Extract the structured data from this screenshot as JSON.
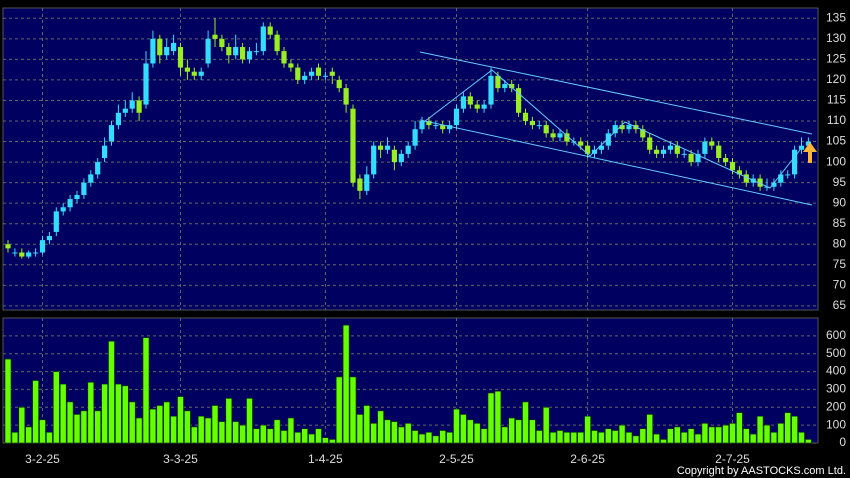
{
  "chart_data": {
    "type": "candlestick",
    "categories": [
      null,
      null,
      null,
      null,
      null,
      "3-2-25",
      null,
      null,
      null,
      null,
      null,
      null,
      null,
      null,
      null,
      null,
      null,
      null,
      null,
      null,
      null,
      null,
      null,
      null,
      null,
      "3-3-25",
      null,
      null,
      null,
      null,
      null,
      null,
      null,
      null,
      null,
      null,
      null,
      null,
      null,
      null,
      null,
      null,
      null,
      null,
      null,
      null,
      "1-4-25",
      null,
      null,
      null,
      null,
      null,
      null,
      null,
      null,
      null,
      null,
      null,
      null,
      null,
      null,
      null,
      null,
      null,
      null,
      "2-5-25",
      null,
      null,
      null,
      null,
      null,
      null,
      null,
      null,
      null,
      null,
      null,
      null,
      null,
      null,
      null,
      null,
      null,
      null,
      "2-6-25",
      null,
      null,
      null,
      null,
      null,
      null,
      null,
      null,
      null,
      null,
      null,
      null,
      null,
      null,
      null,
      null,
      null,
      null,
      null,
      null,
      "2-7-25",
      null,
      null,
      null,
      null,
      null,
      null,
      null,
      null,
      null,
      null,
      null
    ],
    "ohlc": [
      [
        80,
        81,
        78,
        79
      ],
      [
        78,
        79,
        77,
        78
      ],
      [
        78,
        79,
        76.5,
        77
      ],
      [
        77,
        78.5,
        76.5,
        78
      ],
      [
        78,
        79,
        77,
        78
      ],
      [
        78,
        82,
        77.5,
        81
      ],
      [
        81,
        83,
        80,
        82
      ],
      [
        83,
        89,
        82,
        88
      ],
      [
        88,
        90,
        87,
        89
      ],
      [
        89,
        92,
        88,
        91
      ],
      [
        91,
        93,
        90,
        92
      ],
      [
        92,
        96,
        91,
        95
      ],
      [
        95,
        98,
        94,
        97
      ],
      [
        97,
        101,
        96,
        100
      ],
      [
        101,
        106,
        100,
        104
      ],
      [
        105,
        110,
        104,
        109
      ],
      [
        109,
        114,
        108,
        112
      ],
      [
        112,
        115,
        111,
        113
      ],
      [
        113,
        117,
        112,
        115
      ],
      [
        115,
        116,
        110,
        112
      ],
      [
        114,
        127,
        113,
        124
      ],
      [
        124,
        132,
        123,
        130
      ],
      [
        130,
        131,
        124,
        126
      ],
      [
        126,
        130,
        125,
        128
      ],
      [
        127,
        131,
        126,
        129
      ],
      [
        128,
        129,
        121,
        123
      ],
      [
        123,
        125,
        120,
        122
      ],
      [
        122,
        123,
        120,
        121
      ],
      [
        121,
        123,
        120,
        122
      ],
      [
        124,
        132,
        123,
        130
      ],
      [
        131,
        135,
        128,
        130
      ],
      [
        130,
        131,
        127,
        128
      ],
      [
        128,
        129,
        124,
        126
      ],
      [
        126,
        131,
        125,
        128
      ],
      [
        128,
        129,
        124,
        125
      ],
      [
        125,
        128,
        124,
        127
      ],
      [
        127,
        129,
        126,
        127
      ],
      [
        127,
        134,
        126,
        133
      ],
      [
        133,
        134,
        130,
        131
      ],
      [
        131,
        132,
        126,
        127
      ],
      [
        127,
        128,
        123,
        124
      ],
      [
        124,
        125,
        122,
        123
      ],
      [
        123,
        124,
        119,
        120
      ],
      [
        120,
        122,
        119,
        121
      ],
      [
        121,
        123,
        120,
        122
      ],
      [
        123,
        124,
        120,
        121
      ],
      [
        121,
        122,
        120,
        121
      ],
      [
        122,
        123,
        119,
        121
      ],
      [
        120,
        121,
        117,
        118
      ],
      [
        118,
        119,
        112,
        114
      ],
      [
        113,
        114,
        94,
        95
      ],
      [
        96,
        97,
        91,
        93
      ],
      [
        93,
        99,
        92,
        97
      ],
      [
        97,
        105,
        96,
        104
      ],
      [
        104,
        105,
        101,
        103
      ],
      [
        103,
        106,
        102,
        104
      ],
      [
        103,
        104,
        98,
        100
      ],
      [
        100,
        103,
        99,
        102
      ],
      [
        102,
        105,
        101,
        104
      ],
      [
        104,
        110,
        103,
        108
      ],
      [
        108,
        111,
        107,
        110
      ],
      [
        110,
        111,
        108,
        109
      ],
      [
        109,
        110,
        108,
        109
      ],
      [
        109,
        110,
        107,
        108
      ],
      [
        108,
        110,
        107,
        109
      ],
      [
        109,
        114,
        108,
        113
      ],
      [
        113,
        117,
        112,
        116
      ],
      [
        116,
        117,
        113,
        114
      ],
      [
        114,
        115,
        112,
        113
      ],
      [
        113,
        115,
        112,
        114
      ],
      [
        114,
        123,
        113,
        121
      ],
      [
        121,
        122,
        117,
        118
      ],
      [
        118,
        120,
        117,
        119
      ],
      [
        119,
        120,
        117,
        118
      ],
      [
        118,
        119,
        111,
        112
      ],
      [
        112,
        113,
        109,
        110
      ],
      [
        110,
        111,
        108,
        109
      ],
      [
        109,
        110,
        108,
        109
      ],
      [
        109,
        110,
        106,
        107
      ],
      [
        107,
        108,
        105,
        106
      ],
      [
        106,
        108,
        105,
        107
      ],
      [
        107,
        108,
        104,
        105
      ],
      [
        105,
        106,
        104,
        105
      ],
      [
        105,
        106,
        103,
        104
      ],
      [
        104,
        105,
        101,
        102
      ],
      [
        102,
        104,
        101,
        103
      ],
      [
        103,
        105,
        102,
        104
      ],
      [
        104,
        108,
        103,
        107
      ],
      [
        107,
        110,
        106,
        109
      ],
      [
        109,
        110,
        107,
        108
      ],
      [
        108,
        110,
        107,
        109
      ],
      [
        109,
        110,
        107,
        108
      ],
      [
        108,
        109,
        105,
        106
      ],
      [
        106,
        107,
        102,
        103
      ],
      [
        103,
        104,
        101,
        102
      ],
      [
        102,
        104,
        101,
        103
      ],
      [
        103,
        105,
        102,
        104
      ],
      [
        104,
        105,
        101,
        102
      ],
      [
        102,
        103,
        101,
        102
      ],
      [
        102,
        103,
        99,
        100
      ],
      [
        100,
        103,
        99,
        102
      ],
      [
        102,
        106,
        101,
        105
      ],
      [
        105,
        106,
        103,
        104
      ],
      [
        104,
        105,
        100,
        101
      ],
      [
        101,
        102,
        99,
        100
      ],
      [
        100,
        101,
        97,
        98
      ],
      [
        98,
        99,
        96,
        97
      ],
      [
        97,
        98,
        94,
        95
      ],
      [
        95,
        97,
        94,
        96
      ],
      [
        96,
        97,
        93,
        94
      ],
      [
        94,
        96,
        93,
        94
      ],
      [
        94,
        96,
        93,
        95
      ],
      [
        95,
        98,
        94,
        97
      ],
      [
        97,
        98,
        96,
        97
      ],
      [
        97,
        104,
        96,
        103
      ],
      [
        103,
        106,
        102,
        104
      ],
      [
        104,
        106,
        103,
        105
      ]
    ],
    "volume": [
      470,
      60,
      200,
      90,
      350,
      130,
      60,
      400,
      330,
      230,
      160,
      180,
      340,
      180,
      330,
      570,
      330,
      320,
      230,
      140,
      590,
      190,
      210,
      230,
      150,
      260,
      180,
      90,
      150,
      140,
      210,
      120,
      250,
      120,
      100,
      250,
      80,
      100,
      80,
      130,
      70,
      140,
      60,
      80,
      50,
      80,
      30,
      20,
      370,
      660,
      370,
      160,
      210,
      110,
      180,
      130,
      120,
      90,
      110,
      70,
      50,
      60,
      40,
      70,
      60,
      190,
      160,
      130,
      110,
      80,
      280,
      290,
      90,
      140,
      130,
      230,
      130,
      70,
      200,
      60,
      70,
      60,
      60,
      60,
      150,
      70,
      60,
      80,
      70,
      100,
      60,
      40,
      80,
      160,
      50,
      20,
      80,
      90,
      60,
      80,
      50,
      110,
      90,
      90,
      100,
      110,
      170,
      80,
      50,
      150,
      100,
      60,
      110,
      170,
      150,
      60,
      20
    ],
    "ylim": [
      64,
      137.5
    ],
    "yticks": [
      65,
      70,
      75,
      80,
      85,
      90,
      95,
      100,
      105,
      110,
      115,
      120,
      125,
      130,
      135
    ],
    "volume_ylim": [
      0,
      700
    ],
    "volume_yticks": [
      0,
      100,
      200,
      300,
      400,
      500,
      600
    ],
    "up_color": "#33ddff",
    "down_color": "#99ee22",
    "volume_color": "#66ff00",
    "grid": true,
    "copyright": "Copyright by AASTOCKS.com Ltd."
  }
}
